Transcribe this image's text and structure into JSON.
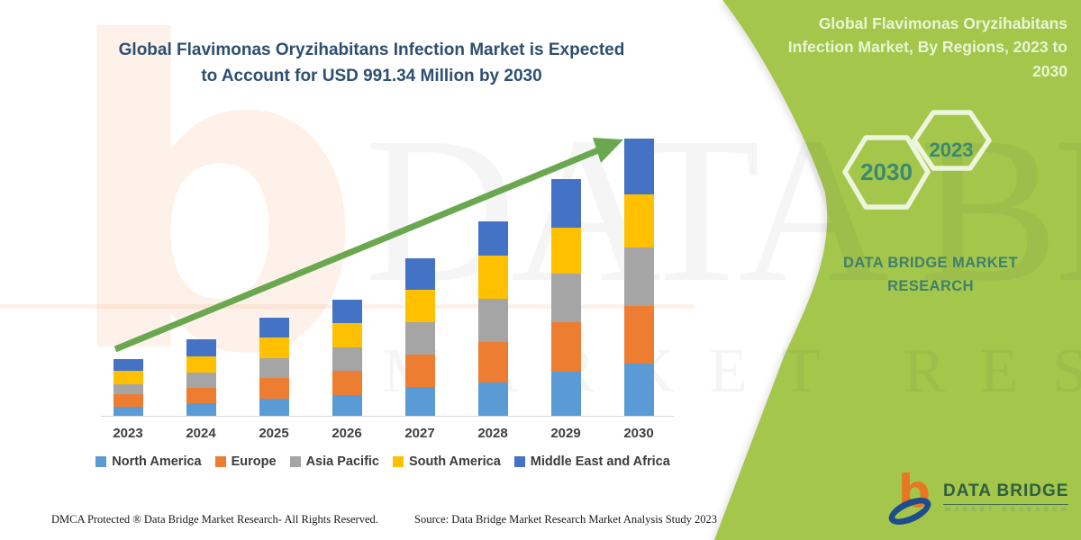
{
  "header": {
    "title_line1": "Global Flavimonas Oryzihabitans Infection Market is Expected",
    "title_line2": "to Account for USD 991.34 Million by 2030"
  },
  "banner": {
    "bg_color": "#A3C64B",
    "title_lines": [
      "Global Flavimonas Oryzihabitans",
      "Infection Market, By Regions, 2023 to",
      "2030"
    ],
    "hexagons": [
      {
        "label": "2030"
      },
      {
        "label": "2023"
      }
    ],
    "hex_stroke_color": "#EDF6DC",
    "hex_text_color": "#3A8A70",
    "brand_line1": "DATA BRIDGE MARKET",
    "brand_line2": "RESEARCH"
  },
  "chart_data": {
    "type": "bar",
    "stacked": true,
    "title": "Global Flavimonas Oryzihabitans Infection Market, By Regions, 2023 to 2030",
    "value_unit": "USD Million",
    "categories": [
      "2023",
      "2024",
      "2025",
      "2026",
      "2027",
      "2028",
      "2029",
      "2030"
    ],
    "series": [
      {
        "name": "North America",
        "color": "#5B9BD5",
        "values": [
          35,
          48,
          64,
          77,
          106,
          122,
          160,
          189
        ]
      },
      {
        "name": "Europe",
        "color": "#ED7D31",
        "values": [
          45,
          55,
          74,
          87,
          115,
          144,
          176,
          205
        ]
      },
      {
        "name": "Asia Pacific",
        "color": "#A5A5A5",
        "values": [
          35,
          55,
          71,
          83,
          115,
          154,
          173,
          209
        ]
      },
      {
        "name": "South America",
        "color": "#FFC000",
        "values": [
          48,
          58,
          74,
          87,
          116,
          154,
          164,
          189
        ]
      },
      {
        "name": "Middle East and Africa",
        "color": "#4472C4",
        "values": [
          42,
          60,
          70,
          83,
          112,
          122,
          174,
          199.34
        ]
      }
    ],
    "totals": [
      205,
      276,
      353,
      417,
      564,
      696,
      847,
      991.34
    ],
    "ylim": [
      0,
      1000
    ],
    "grid": false,
    "legend_position": "bottom",
    "annotations": [
      "green upward trend arrow from 2023 to 2030"
    ]
  },
  "arrow_color": "#69A84F",
  "watermarks": {
    "letter_b": "b",
    "big_text": "DATA BRIDGE",
    "sub_text": "MARKET RESEARCH"
  },
  "logo": {
    "b_glyph": "b",
    "name_text": "DATA BRIDGE",
    "sub_text": "MARKET RESEARCH"
  },
  "footer": {
    "left": "DMCA Protected ® Data Bridge Market Research-  All Rights Reserved.",
    "right": "Source: Data Bridge Market Research  Market Analysis Study 2023"
  }
}
